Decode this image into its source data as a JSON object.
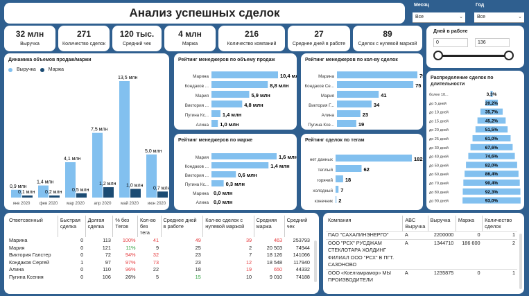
{
  "title": "Анализ успешных сделок",
  "filters": {
    "month": {
      "label": "Месяц",
      "value": "Все"
    },
    "year": {
      "label": "Год",
      "value": "Все"
    }
  },
  "kpis": [
    {
      "value": "32 млн",
      "label": "Выручка"
    },
    {
      "value": "271",
      "label": "Количество сделок"
    },
    {
      "value": "120 тыс.",
      "label": "Средний чек"
    },
    {
      "value": "4 млн",
      "label": "Маржа"
    },
    {
      "value": "216",
      "label": "Количество компаний"
    },
    {
      "value": "27",
      "label": "Среднее дней в работе"
    },
    {
      "value": "89",
      "label": "Сделок с нулевой маржой"
    }
  ],
  "days_slider": {
    "label": "Дней в работе",
    "min": "0",
    "max": "136"
  },
  "colors": {
    "light": "#82c0ef",
    "dark": "#1b4b73",
    "bg": "#2f5f8f"
  },
  "chart_data": [
    {
      "type": "bar",
      "title": "Динамика объемов продаж/маржи",
      "categories": [
        "янв 2020",
        "фев 2020",
        "мар 2020",
        "апр 2020",
        "май 2020",
        "июн 2020"
      ],
      "series": [
        {
          "name": "Выручка",
          "values": [
            0.9,
            1.4,
            4.1,
            7.5,
            13.5,
            5.0
          ],
          "labels": [
            "0,9 млн",
            "1,4 млн",
            "4,1 млн",
            "7,5 млн",
            "13,5 млн",
            "5,0 млн"
          ]
        },
        {
          "name": "Маржа",
          "values": [
            0.1,
            0.2,
            0.5,
            1.2,
            1.0,
            0.7
          ],
          "labels": [
            "0,1 млн",
            "0,2 млн",
            "0,5 млн",
            "1,2 млн",
            "1,0 млн",
            "0,7 млн"
          ]
        }
      ],
      "legend": "top-left"
    },
    {
      "type": "bar",
      "orientation": "horizontal",
      "title": "Рейтинг менеджеров по объему продаж",
      "categories": [
        "Марина",
        "Кондаков ...",
        "Мария",
        "Виктория ...",
        "Пугина Кс...",
        "Алина"
      ],
      "values": [
        10.4,
        8.8,
        5.9,
        4.8,
        1.4,
        1.0
      ],
      "labels": [
        "10,4 млн",
        "8,8 млн",
        "5,9 млн",
        "4,8 млн",
        "1,4 млн",
        "1,0 млн"
      ]
    },
    {
      "type": "bar",
      "orientation": "horizontal",
      "title": "Рейтинг менеджеров по кол-ву сделок",
      "categories": [
        "Марина",
        "Кондаков Се...",
        "Мария",
        "Виктория Г...",
        "Алина",
        "Пугина Ксе..."
      ],
      "values": [
        79,
        75,
        41,
        34,
        23,
        19
      ],
      "labels": [
        "79",
        "75",
        "41",
        "34",
        "23",
        "19"
      ]
    },
    {
      "type": "bar",
      "orientation": "horizontal",
      "title": "Рейтинг менеджеров по марже",
      "categories": [
        "Мария",
        "Кондаков ...",
        "Виктория ...",
        "Пугина Кс...",
        "Марина",
        "Алина"
      ],
      "values": [
        1.6,
        1.4,
        0.6,
        0.3,
        0.0,
        0.0
      ],
      "labels": [
        "1,6 млн",
        "1,4 млн",
        "0,6 млн",
        "0,3 млн",
        "0,0 млн",
        "0,0 млн"
      ]
    },
    {
      "type": "bar",
      "orientation": "horizontal",
      "title": "Рейтинг сделок по тегам",
      "categories": [
        "нет данных",
        "теплый",
        "горячий",
        "холодный",
        "конечник"
      ],
      "values": [
        182,
        62,
        18,
        7,
        2
      ],
      "labels": [
        "182",
        "62",
        "18",
        "7",
        "2"
      ]
    },
    {
      "type": "bar",
      "orientation": "funnel",
      "title": "Распределение сделок по длительности",
      "categories": [
        "более 10...",
        "до 5 дней",
        "до 10 дней",
        "до 15 дней",
        "до 20 дней",
        "до 25 дней",
        "до 30 дней",
        "до 40 дней",
        "до 50 дней",
        "до 60 дней",
        "до 70 дней",
        "до 80 дней",
        "до 90 дней"
      ],
      "values": [
        3.3,
        20.2,
        35.7,
        45.2,
        51.5,
        61.0,
        67.6,
        74.6,
        82.0,
        86.4,
        90.4,
        92.3,
        93.0
      ],
      "labels": [
        "3,3%",
        "20,2%",
        "35,7%",
        "45,2%",
        "51,5%",
        "61,0%",
        "67,6%",
        "74,6%",
        "82,0%",
        "86,4%",
        "90,4%",
        "92,3%",
        "93,0%"
      ]
    }
  ],
  "managers_table": {
    "headers": [
      "Ответсвенный",
      "Быстрая сделка",
      "Долгая сделка",
      "% без Тегов",
      "Кол-во без тега",
      "Среднее дней в работе",
      "Кол-во сделок с нулевой маржой",
      "Средняя маржа",
      "Средний чек"
    ],
    "rows": [
      [
        "Марина",
        "0",
        "113",
        "100%",
        "41",
        "49",
        "39",
        "463",
        "253793"
      ],
      [
        "Мария",
        "0",
        "121",
        "11%",
        "9",
        "25",
        "2",
        "20 503",
        "74944"
      ],
      [
        "Виктория Галстер",
        "0",
        "72",
        "94%",
        "32",
        "23",
        "7",
        "18 126",
        "141066"
      ],
      [
        "Кондаков Сергей",
        "1",
        "97",
        "97%",
        "73",
        "23",
        "12",
        "18 548",
        "117940"
      ],
      [
        "Алина",
        "0",
        "110",
        "96%",
        "22",
        "18",
        "19",
        "650",
        "44332"
      ],
      [
        "Пугина Ксения",
        "0",
        "106",
        "26%",
        "5",
        "15",
        "10",
        "9 010",
        "74188"
      ]
    ],
    "colors": [
      [
        null,
        null,
        null,
        "red",
        "red",
        "red",
        "red",
        "red",
        null
      ],
      [
        null,
        null,
        null,
        "green",
        null,
        null,
        null,
        null,
        null
      ],
      [
        null,
        null,
        null,
        "red",
        "red",
        null,
        null,
        null,
        null
      ],
      [
        null,
        null,
        null,
        "red",
        "red",
        null,
        "red",
        null,
        null
      ],
      [
        null,
        null,
        null,
        "red",
        null,
        null,
        "red",
        "red",
        null
      ],
      [
        null,
        null,
        null,
        null,
        null,
        "green",
        null,
        null,
        null
      ]
    ]
  },
  "companies_table": {
    "headers": [
      "Компания",
      "ABC Выручка",
      "Выручка",
      "Маржа",
      "Количество сделок"
    ],
    "rows": [
      {
        "name": [
          "ПАО \"САХАЛИНЭНЕРГО\""
        ],
        "abc": "A",
        "rev": "2200000",
        "margin": "0",
        "deals": "1"
      },
      {
        "name": [
          "ООО \"РСХ\" РУСДЖАМ",
          "СТЕКЛОТАРА ХОЛДИНГ",
          "ФИЛИАЛ ООО \"РСХ\" В ПГТ.",
          "САЗОНОВО"
        ],
        "abc": "A",
        "rev": "1344710",
        "margin": "186 600",
        "deals": "2"
      },
      {
        "name": [
          "ООО «Коелгамрамор» МЫ",
          "ПРОИЗВОДИТЕЛИ"
        ],
        "abc": "A",
        "rev": "1235875",
        "margin": "0",
        "deals": "1"
      }
    ]
  }
}
